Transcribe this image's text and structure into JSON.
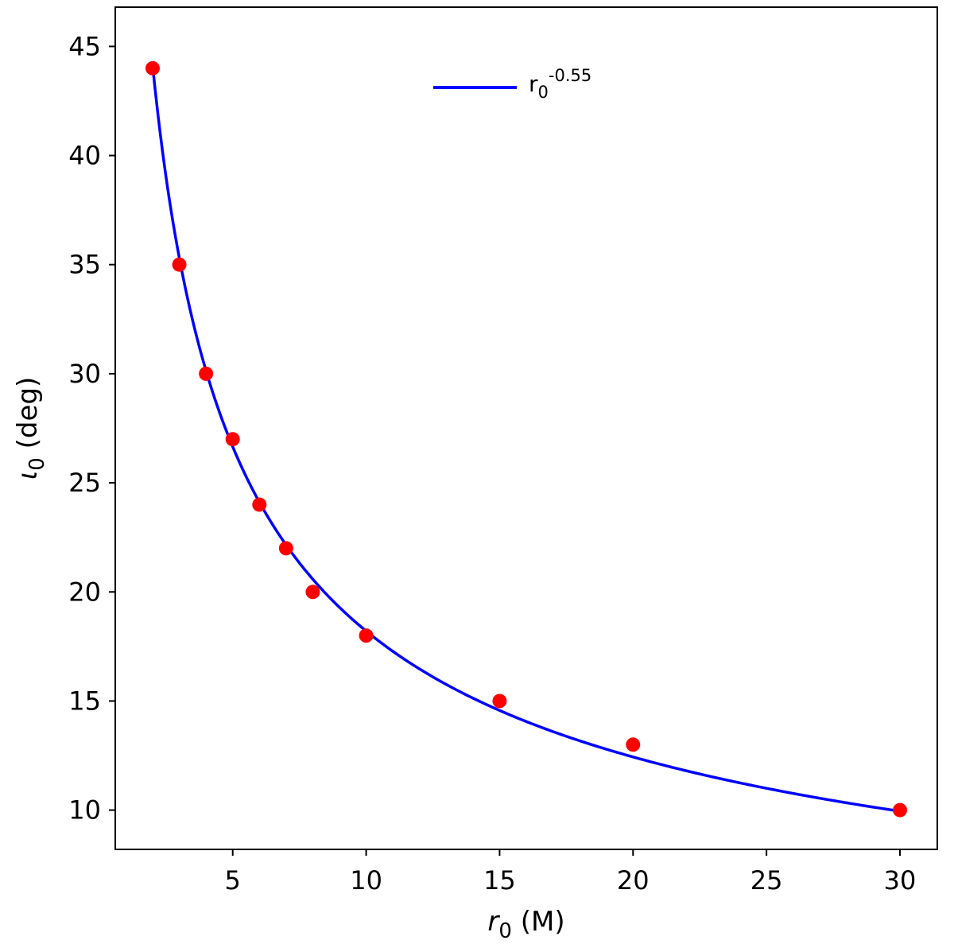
{
  "chart_data": {
    "type": "scatter",
    "xlabel": {
      "symbol": "r",
      "subscript": "0",
      "unit": " (M)"
    },
    "ylabel": {
      "symbol": "ι",
      "subscript": "0",
      "unit": " (deg)"
    },
    "xlim": [
      0.6,
      31.4
    ],
    "ylim": [
      8.2,
      46.8
    ],
    "xticks": [
      5,
      10,
      15,
      20,
      25,
      30
    ],
    "yticks": [
      10,
      15,
      20,
      25,
      30,
      35,
      40,
      45
    ],
    "grid": false,
    "legend_position": "upper center",
    "series": [
      {
        "kind": "points",
        "color": "#ff0000",
        "x": [
          2,
          3,
          4,
          5,
          6,
          7,
          8,
          10,
          15,
          20,
          30
        ],
        "y": [
          44,
          35,
          30,
          27,
          24,
          22,
          20,
          18,
          15,
          13,
          10
        ]
      },
      {
        "kind": "line",
        "color": "#0000ff",
        "name": {
          "base": "r",
          "subscript": "0",
          "superscript": "-0.55"
        },
        "fit": {
          "coefficient": 64.6,
          "exponent": -0.55,
          "x_start": 2,
          "x_end": 30
        }
      }
    ]
  }
}
